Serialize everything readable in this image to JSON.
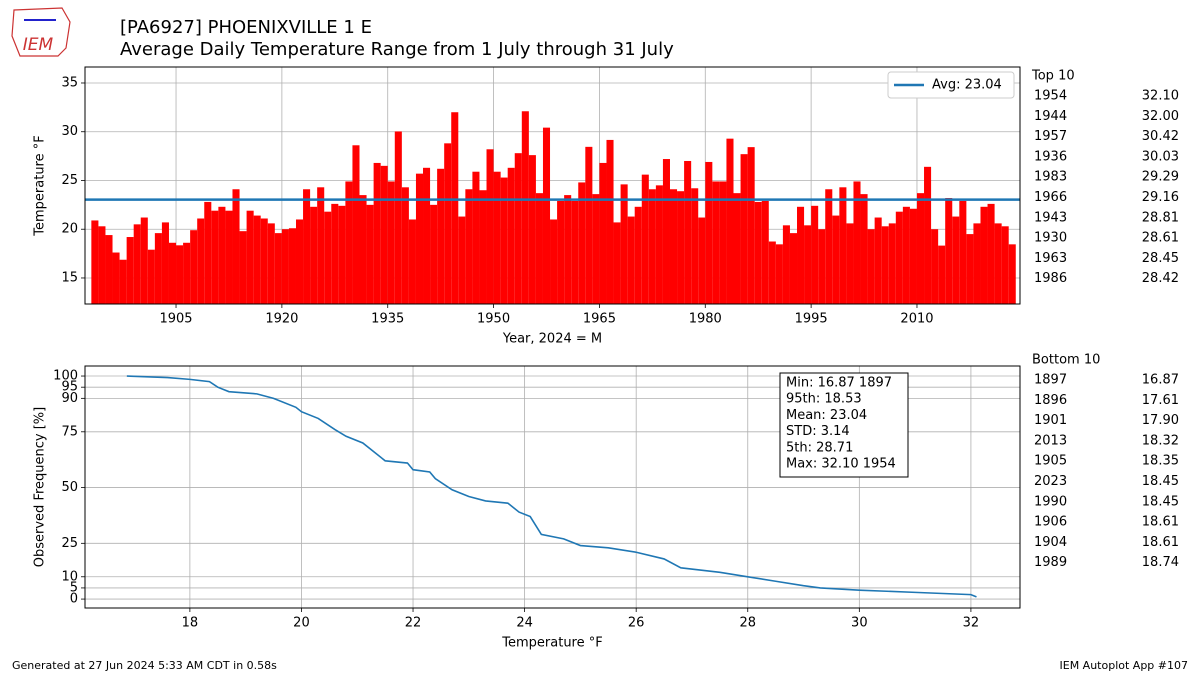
{
  "header": {
    "logo": "IEM",
    "title_lines": [
      "[PA6927] PHOENIXVILLE 1 E",
      "Average Daily Temperature Range from 1 July through 31 July"
    ]
  },
  "chart_data": [
    {
      "type": "bar",
      "ylabel": "Temperature °F",
      "xlabel": "Year, 2024 = M",
      "color": "#ff0000",
      "grid": true,
      "x": [
        1893,
        1894,
        1895,
        1896,
        1897,
        1898,
        1899,
        1900,
        1901,
        1902,
        1903,
        1904,
        1905,
        1906,
        1907,
        1908,
        1909,
        1910,
        1911,
        1912,
        1913,
        1914,
        1915,
        1916,
        1917,
        1918,
        1919,
        1920,
        1921,
        1922,
        1923,
        1924,
        1925,
        1926,
        1927,
        1928,
        1929,
        1930,
        1931,
        1932,
        1933,
        1934,
        1935,
        1936,
        1937,
        1938,
        1939,
        1940,
        1941,
        1942,
        1943,
        1944,
        1945,
        1946,
        1947,
        1948,
        1949,
        1950,
        1951,
        1952,
        1953,
        1954,
        1955,
        1956,
        1957,
        1958,
        1959,
        1960,
        1961,
        1962,
        1963,
        1964,
        1965,
        1966,
        1967,
        1968,
        1969,
        1970,
        1971,
        1972,
        1973,
        1974,
        1975,
        1976,
        1977,
        1978,
        1979,
        1980,
        1981,
        1982,
        1983,
        1984,
        1985,
        1986,
        1987,
        1988,
        1989,
        1990,
        1991,
        1992,
        1993,
        1994,
        1995,
        1996,
        1997,
        1998,
        1999,
        2000,
        2001,
        2002,
        2003,
        2004,
        2005,
        2006,
        2007,
        2008,
        2009,
        2010,
        2011,
        2012,
        2013,
        2014,
        2015,
        2016,
        2017,
        2018,
        2019,
        2020,
        2021,
        2022,
        2023
      ],
      "values": [
        20.9,
        20.3,
        19.4,
        17.61,
        16.87,
        19.2,
        20.5,
        21.2,
        17.9,
        19.6,
        20.7,
        18.61,
        18.35,
        18.61,
        19.9,
        21.1,
        22.8,
        21.9,
        22.3,
        21.9,
        24.1,
        19.8,
        21.9,
        21.4,
        21.1,
        20.6,
        19.6,
        20.0,
        20.1,
        21.0,
        24.1,
        22.3,
        24.3,
        21.8,
        22.6,
        22.4,
        24.9,
        28.61,
        23.5,
        22.5,
        26.8,
        26.5,
        24.9,
        30.03,
        24.3,
        21.0,
        25.7,
        26.3,
        22.5,
        26.2,
        28.81,
        32.0,
        21.3,
        24.1,
        25.9,
        24.0,
        28.2,
        25.9,
        25.3,
        26.3,
        27.8,
        32.1,
        27.6,
        23.7,
        30.42,
        21.0,
        22.9,
        23.5,
        22.9,
        24.8,
        28.45,
        23.6,
        26.8,
        29.16,
        20.7,
        24.6,
        21.3,
        22.3,
        25.6,
        24.1,
        24.5,
        27.2,
        24.1,
        23.9,
        27.0,
        24.2,
        21.2,
        26.9,
        24.9,
        24.9,
        29.29,
        23.7,
        27.7,
        28.42,
        22.8,
        22.9,
        18.74,
        18.45,
        20.4,
        19.6,
        22.3,
        20.4,
        22.4,
        20.0,
        24.1,
        21.4,
        24.3,
        20.6,
        24.9,
        23.6,
        20.0,
        21.2,
        20.3,
        20.6,
        21.8,
        22.3,
        22.1,
        23.7,
        26.4,
        20.0,
        18.32,
        23.2,
        21.3,
        22.9,
        19.5,
        20.6,
        22.3,
        22.6,
        20.6,
        20.3,
        18.45
      ],
      "xlim": [
        1892.1,
        2024.6
      ],
      "xticks": [
        1905,
        1920,
        1935,
        1950,
        1965,
        1980,
        1995,
        2010
      ],
      "ylim": [
        12.33,
        36.64
      ],
      "yticks": [
        15,
        20,
        25,
        30,
        35
      ],
      "avg": {
        "value": 23.04,
        "name": "Avg: 23.04",
        "color": "#1f77b4"
      },
      "legend": "upper right"
    },
    {
      "type": "line",
      "ylabel": "Observed Frequency [%]",
      "xlabel": "Temperature °F",
      "color": "#1f77b4",
      "grid": true,
      "x": [
        16.87,
        17.6,
        18.0,
        18.35,
        18.5,
        18.7,
        19.2,
        19.5,
        19.9,
        20.0,
        20.3,
        20.6,
        20.8,
        21.1,
        21.3,
        21.5,
        21.9,
        22.0,
        22.3,
        22.4,
        22.7,
        23.0,
        23.3,
        23.7,
        23.9,
        24.1,
        24.3,
        24.7,
        25.0,
        25.5,
        26.0,
        26.5,
        26.8,
        27.5,
        28.0,
        28.5,
        29.0,
        29.3,
        30.0,
        31.0,
        32.0,
        32.1
      ],
      "values": [
        100,
        99.3,
        98.5,
        97.5,
        95,
        93,
        92,
        90,
        86,
        84,
        81,
        76,
        73,
        70,
        66,
        62,
        61,
        58,
        57,
        54,
        49,
        46,
        44,
        43,
        39,
        37,
        29,
        27,
        24,
        23,
        21,
        18,
        14,
        12,
        10,
        8,
        6,
        5,
        4,
        3,
        2,
        1
      ],
      "xlim": [
        16.12,
        32.88
      ],
      "xticks": [
        18,
        20,
        22,
        24,
        26,
        28,
        30,
        32
      ],
      "ylim": [
        -4,
        104.5
      ],
      "yticks": [
        0,
        5,
        10,
        25,
        50,
        75,
        90,
        95,
        100
      ],
      "stats": [
        "Min: 16.87 1897",
        "95th: 18.53",
        "Mean: 23.04",
        "STD: 3.14",
        "5th: 28.71",
        "Max: 32.10 1954"
      ]
    }
  ],
  "top10": {
    "title": "Top 10",
    "rows": [
      [
        "1954",
        "32.10"
      ],
      [
        "1944",
        "32.00"
      ],
      [
        "1957",
        "30.42"
      ],
      [
        "1936",
        "30.03"
      ],
      [
        "1983",
        "29.29"
      ],
      [
        "1966",
        "29.16"
      ],
      [
        "1943",
        "28.81"
      ],
      [
        "1930",
        "28.61"
      ],
      [
        "1963",
        "28.45"
      ],
      [
        "1986",
        "28.42"
      ]
    ]
  },
  "bottom10": {
    "title": "Bottom 10",
    "rows": [
      [
        "1897",
        "16.87"
      ],
      [
        "1896",
        "17.61"
      ],
      [
        "1901",
        "17.90"
      ],
      [
        "2013",
        "18.32"
      ],
      [
        "1905",
        "18.35"
      ],
      [
        "2023",
        "18.45"
      ],
      [
        "1990",
        "18.45"
      ],
      [
        "1906",
        "18.61"
      ],
      [
        "1904",
        "18.61"
      ],
      [
        "1989",
        "18.74"
      ]
    ]
  },
  "footer": {
    "left": "Generated at 27 Jun 2024 5:33 AM CDT in 0.58s",
    "right": "IEM Autoplot App #107"
  }
}
